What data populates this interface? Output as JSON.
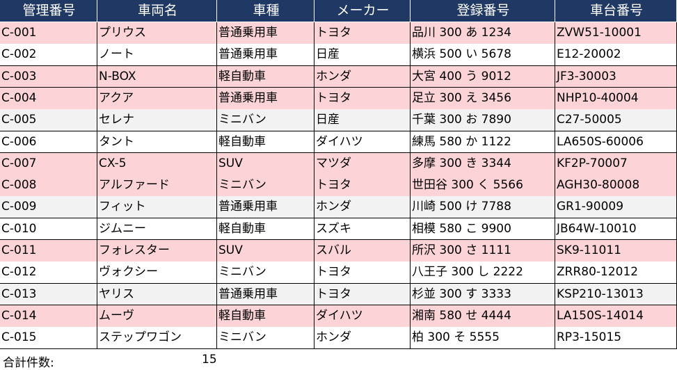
{
  "table": {
    "header": [
      "管理番号",
      "車両名",
      "車種",
      "メーカー",
      "登録番号",
      "車台番号"
    ],
    "rows": [
      [
        "C-001",
        "プリウス",
        "普通乗用車",
        "トヨタ",
        "品川 300 あ 1234",
        "ZVW51-10001"
      ],
      [
        "C-002",
        "ノート",
        "普通乗用車",
        "日産",
        "横浜 500 い 5678",
        "E12-20002"
      ],
      [
        "C-003",
        "N-BOX",
        "軽自動車",
        "ホンダ",
        "大宮 400 う 9012",
        "JF3-30003"
      ],
      [
        "C-004",
        "アクア",
        "普通乗用車",
        "トヨタ",
        "足立 300 え 3456",
        "NHP10-40004"
      ],
      [
        "C-005",
        "セレナ",
        "ミニバン",
        "日産",
        "千葉 300 お 7890",
        "C27-50005"
      ],
      [
        "C-006",
        "タント",
        "軽自動車",
        "ダイハツ",
        "練馬 580 か 1122",
        "LA650S-60006"
      ],
      [
        "C-007",
        "CX-5",
        "SUV",
        "マツダ",
        "多摩 300 き 3344",
        "KF2P-70007"
      ],
      [
        "C-008",
        "アルファード",
        "ミニバン",
        "トヨタ",
        "世田谷 300 く 5566",
        "AGH30-80008"
      ],
      [
        "C-009",
        "フィット",
        "普通乗用車",
        "ホンダ",
        "川崎 500 け 7788",
        "GR1-90009"
      ],
      [
        "C-010",
        "ジムニー",
        "軽自動車",
        "スズキ",
        "相模 580 こ 9900",
        "JB64W-10010"
      ],
      [
        "C-011",
        "フォレスター",
        "SUV",
        "スバル",
        "所沢 300 さ 1111",
        "SK9-11011"
      ],
      [
        "C-012",
        "ヴォクシー",
        "ミニバン",
        "トヨタ",
        "八王子 300 し 2222",
        "ZRR80-12012"
      ],
      [
        "C-013",
        "ヤリス",
        "普通乗用車",
        "トヨタ",
        "杉並 300 す 3333",
        "KSP210-13013"
      ],
      [
        "C-014",
        "ムーヴ",
        "軽自動車",
        "ダイハツ",
        "湘南 580 せ 4444",
        "LA150S-14014"
      ],
      [
        "C-015",
        "ステップワゴン",
        "ミニバン",
        "ホンダ",
        "柏 300 そ 5555",
        "RP3-15015"
      ]
    ],
    "row_fills": [
      "#fcd3d7",
      "#ffffff",
      "#fcd3d7",
      "#fcd3d7",
      "#f2f2f2",
      "#ffffff",
      "#fcd3d7",
      "#fcd3d7",
      "#f2f2f2",
      "#ffffff",
      "#fcd3d7",
      "#ffffff",
      "#f2f2f2",
      "#fcd3d7",
      "#ffffff"
    ],
    "header_fill": "#1f3864"
  },
  "footer": {
    "label": "合計件数:",
    "count": 15
  }
}
